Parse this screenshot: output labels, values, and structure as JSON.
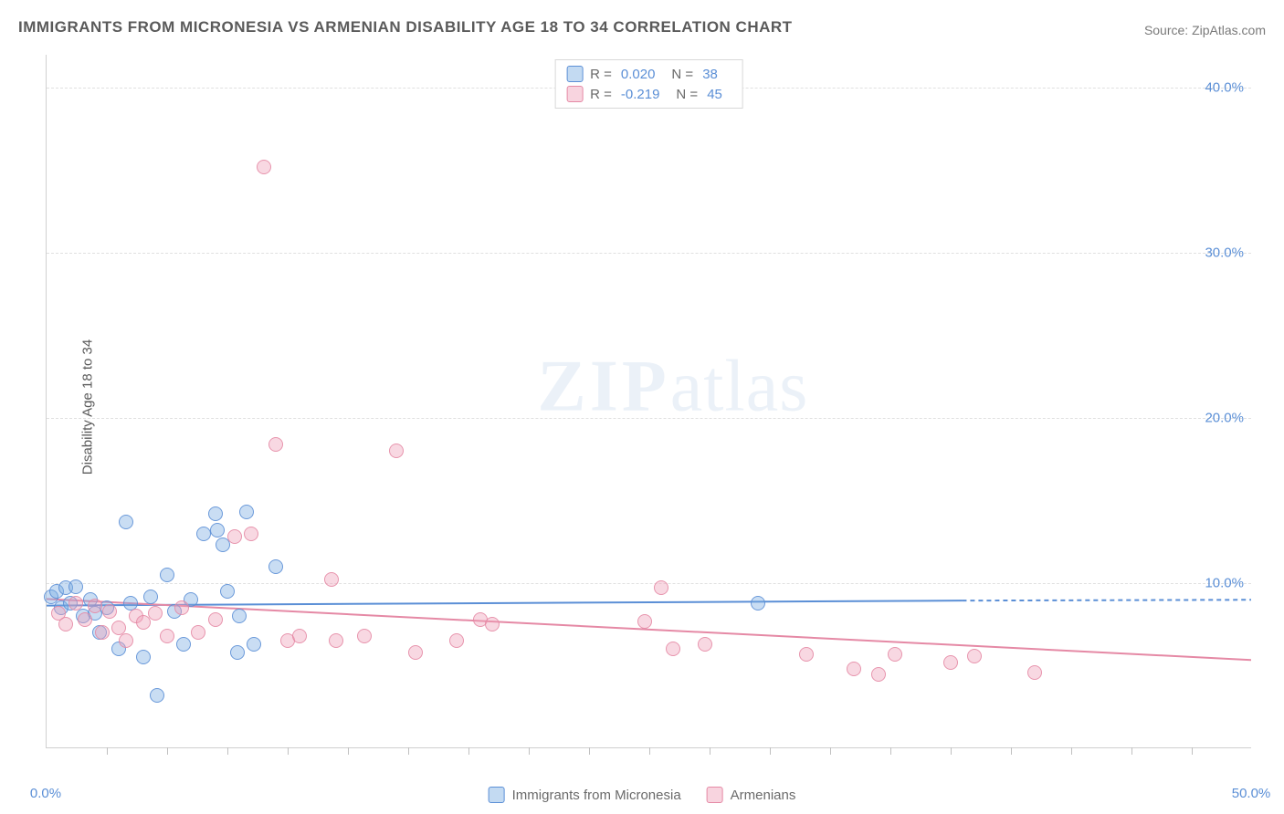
{
  "title": "IMMIGRANTS FROM MICRONESIA VS ARMENIAN DISABILITY AGE 18 TO 34 CORRELATION CHART",
  "source_label": "Source: ",
  "source_name": "ZipAtlas.com",
  "watermark": {
    "part1": "ZIP",
    "part2": "atlas"
  },
  "chart": {
    "type": "scatter",
    "ylabel": "Disability Age 18 to 34",
    "xlim": [
      0,
      50
    ],
    "ylim": [
      0,
      42
    ],
    "x_ticks": [
      0,
      50
    ],
    "x_tick_labels": [
      "0.0%",
      "50.0%"
    ],
    "x_minor_ticks": [
      2.5,
      5,
      7.5,
      10,
      12.5,
      15,
      17.5,
      20,
      22.5,
      25,
      27.5,
      30,
      32.5,
      35,
      37.5,
      40,
      42.5,
      45,
      47.5
    ],
    "y_ticks": [
      10,
      20,
      30,
      40
    ],
    "y_tick_labels": [
      "10.0%",
      "20.0%",
      "30.0%",
      "40.0%"
    ],
    "grid_color": "#e0e0e0",
    "background_color": "#ffffff",
    "axis_color": "#d0d0d0",
    "marker_radius": 8,
    "marker_border_width": 1.5,
    "label_fontsize": 15,
    "title_fontsize": 17,
    "title_color": "#5a5a5a",
    "tick_label_color": "#5b8fd6",
    "series": [
      {
        "name": "Immigrants from Micronesia",
        "fill_color": "rgba(123,173,226,0.45)",
        "border_color": "#5b8fd6",
        "r_value": "0.020",
        "n_value": "38",
        "trend": {
          "x1": 0,
          "y1": 8.6,
          "x2": 38,
          "y2": 8.9,
          "extend_x2": 50,
          "extend_y2": 8.95,
          "width": 2
        },
        "points": [
          [
            0.2,
            9.2
          ],
          [
            0.4,
            9.5
          ],
          [
            0.6,
            8.5
          ],
          [
            0.8,
            9.7
          ],
          [
            1.0,
            8.8
          ],
          [
            1.2,
            9.8
          ],
          [
            1.5,
            8.0
          ],
          [
            1.8,
            9.0
          ],
          [
            2.0,
            8.2
          ],
          [
            2.2,
            7.0
          ],
          [
            2.5,
            8.5
          ],
          [
            3.0,
            6.0
          ],
          [
            3.3,
            13.7
          ],
          [
            3.5,
            8.8
          ],
          [
            4.0,
            5.5
          ],
          [
            4.3,
            9.2
          ],
          [
            4.6,
            3.2
          ],
          [
            5.0,
            10.5
          ],
          [
            5.3,
            8.3
          ],
          [
            5.7,
            6.3
          ],
          [
            6.0,
            9.0
          ],
          [
            6.5,
            13.0
          ],
          [
            7.0,
            14.2
          ],
          [
            7.1,
            13.2
          ],
          [
            7.3,
            12.3
          ],
          [
            7.5,
            9.5
          ],
          [
            7.9,
            5.8
          ],
          [
            8.0,
            8.0
          ],
          [
            8.3,
            14.3
          ],
          [
            8.6,
            6.3
          ],
          [
            9.5,
            11.0
          ],
          [
            29.5,
            8.8
          ]
        ]
      },
      {
        "name": "Armenians",
        "fill_color": "rgba(240,160,185,0.45)",
        "border_color": "#e589a5",
        "r_value": "-0.219",
        "n_value": "45",
        "trend": {
          "x1": 0,
          "y1": 9.0,
          "x2": 50,
          "y2": 5.3,
          "width": 2
        },
        "points": [
          [
            0.5,
            8.2
          ],
          [
            0.8,
            7.5
          ],
          [
            1.2,
            8.8
          ],
          [
            1.6,
            7.8
          ],
          [
            2.0,
            8.6
          ],
          [
            2.3,
            7.0
          ],
          [
            2.6,
            8.3
          ],
          [
            3.0,
            7.3
          ],
          [
            3.3,
            6.5
          ],
          [
            3.7,
            8.0
          ],
          [
            4.0,
            7.6
          ],
          [
            4.5,
            8.2
          ],
          [
            5.0,
            6.8
          ],
          [
            5.6,
            8.5
          ],
          [
            6.3,
            7.0
          ],
          [
            7.0,
            7.8
          ],
          [
            7.8,
            12.8
          ],
          [
            8.5,
            13.0
          ],
          [
            9.0,
            35.2
          ],
          [
            9.5,
            18.4
          ],
          [
            10.0,
            6.5
          ],
          [
            10.5,
            6.8
          ],
          [
            11.8,
            10.2
          ],
          [
            12.0,
            6.5
          ],
          [
            13.2,
            6.8
          ],
          [
            14.5,
            18.0
          ],
          [
            15.3,
            5.8
          ],
          [
            17.0,
            6.5
          ],
          [
            18.0,
            7.8
          ],
          [
            18.5,
            7.5
          ],
          [
            24.8,
            7.7
          ],
          [
            25.5,
            9.7
          ],
          [
            26.0,
            6.0
          ],
          [
            27.3,
            6.3
          ],
          [
            31.5,
            5.7
          ],
          [
            33.5,
            4.8
          ],
          [
            34.5,
            4.5
          ],
          [
            35.2,
            5.7
          ],
          [
            37.5,
            5.2
          ],
          [
            38.5,
            5.6
          ],
          [
            41.0,
            4.6
          ]
        ]
      }
    ]
  },
  "legend_top": {
    "r_label": "R =",
    "n_label": "N ="
  },
  "legend_bottom_labels": [
    "Immigrants from Micronesia",
    "Armenians"
  ]
}
